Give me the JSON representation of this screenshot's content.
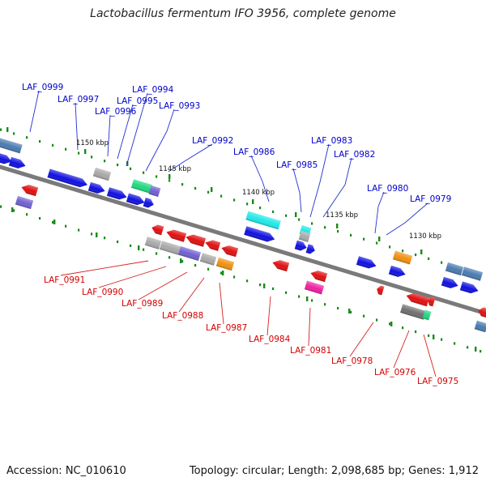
{
  "title": "Lactobacillus fermentum IFO 3956, complete genome",
  "accession": "Accession: NC_010610",
  "info": "Topology: circular; Length: 2,098,685 bp; Genes: 1,912",
  "scale_labels": [
    "1150 kbp",
    "1145 kbp",
    "1140 kbp",
    "1135 kbp",
    "1130 kbp"
  ],
  "top_labels": [
    "LAF_0999",
    "LAF_0997",
    "LAF_0996",
    "LAF_0995",
    "LAF_0994",
    "LAF_0993",
    "LAF_0992",
    "LAF_0986",
    "LAF_0985",
    "LAF_0983",
    "LAF_0982",
    "LAF_0980",
    "LAF_0979"
  ],
  "bottom_labels": [
    "LAF_0991",
    "LAF_0990",
    "LAF_0989",
    "LAF_0988",
    "LAF_0987",
    "LAF_0984",
    "LAF_0981",
    "LAF_0978",
    "LAF_0976",
    "LAF_0975"
  ],
  "colors": {
    "blue": "#1010e0",
    "red": "#e01010",
    "gray": "#a8a8a8",
    "cyan": "#20e8e8",
    "green": "#20d880",
    "purple": "#7060d0",
    "orange": "#f09010",
    "magenta": "#f020a0",
    "steel": "#4a7ab0",
    "darkgray": "#707070",
    "backbone": "#7a7a7a",
    "tick": "#1a8a1a"
  }
}
